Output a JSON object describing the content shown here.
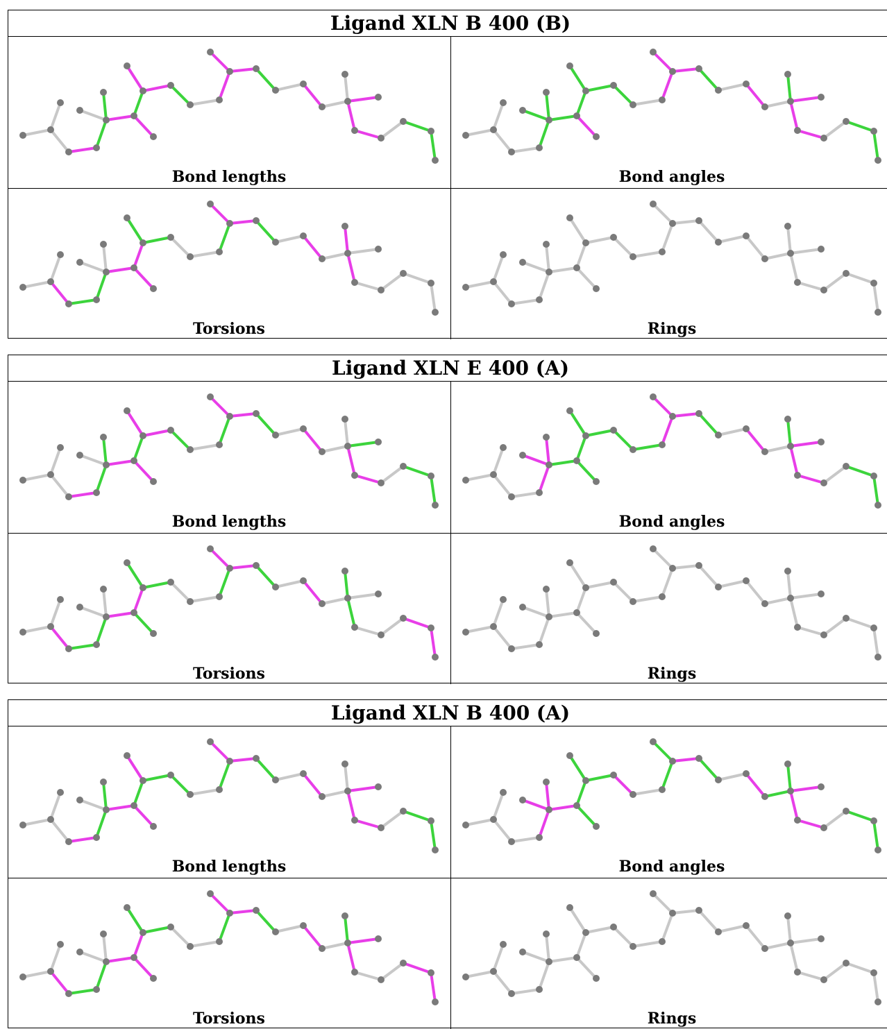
{
  "colors": {
    "default_bond": "#c8c8c8",
    "outlier_ok": "#3cd43c",
    "outlier_bad": "#e83ee8",
    "atom": "#7a7a7a"
  },
  "blocks": [
    {
      "title": "Ligand XLN B 400 (B)",
      "panels": [
        {
          "label": "Bond lengths",
          "colors": "000211022122102221020022201111"
        },
        {
          "label": "Bond angles",
          "colors": "000011112111102221020122201111"
        },
        {
          "label": "Torsions",
          "colors": "002110022211001221020202000000"
        },
        {
          "label": "Rings",
          "colors": "000000000000000000000000000000"
        }
      ]
    },
    {
      "title": "Ligand XLN E 400 (A)",
      "panels": [
        {
          "label": "Bond lengths",
          "colors": "000211022122101221020012201111"
        },
        {
          "label": "Bond angles",
          "colors": "000022211111112221020122201111"
        },
        {
          "label": "Torsions",
          "colors": "002110021211001221020101002200"
        },
        {
          "label": "Rings",
          "colors": "000000000000000000000000000000"
        }
      ]
    },
    {
      "title": "Ligand XLN B 400 (A)",
      "panels": [
        {
          "label": "Bond lengths",
          "colors": "000211022121101221020022201111"
        },
        {
          "label": "Bond angles",
          "colors": "000022221111201121021122201111"
        },
        {
          "label": "Torsions",
          "colors": "002110022211001221020122002200"
        },
        {
          "label": "Rings",
          "colors": "000000000000000000000000000000"
        }
      ]
    }
  ]
}
